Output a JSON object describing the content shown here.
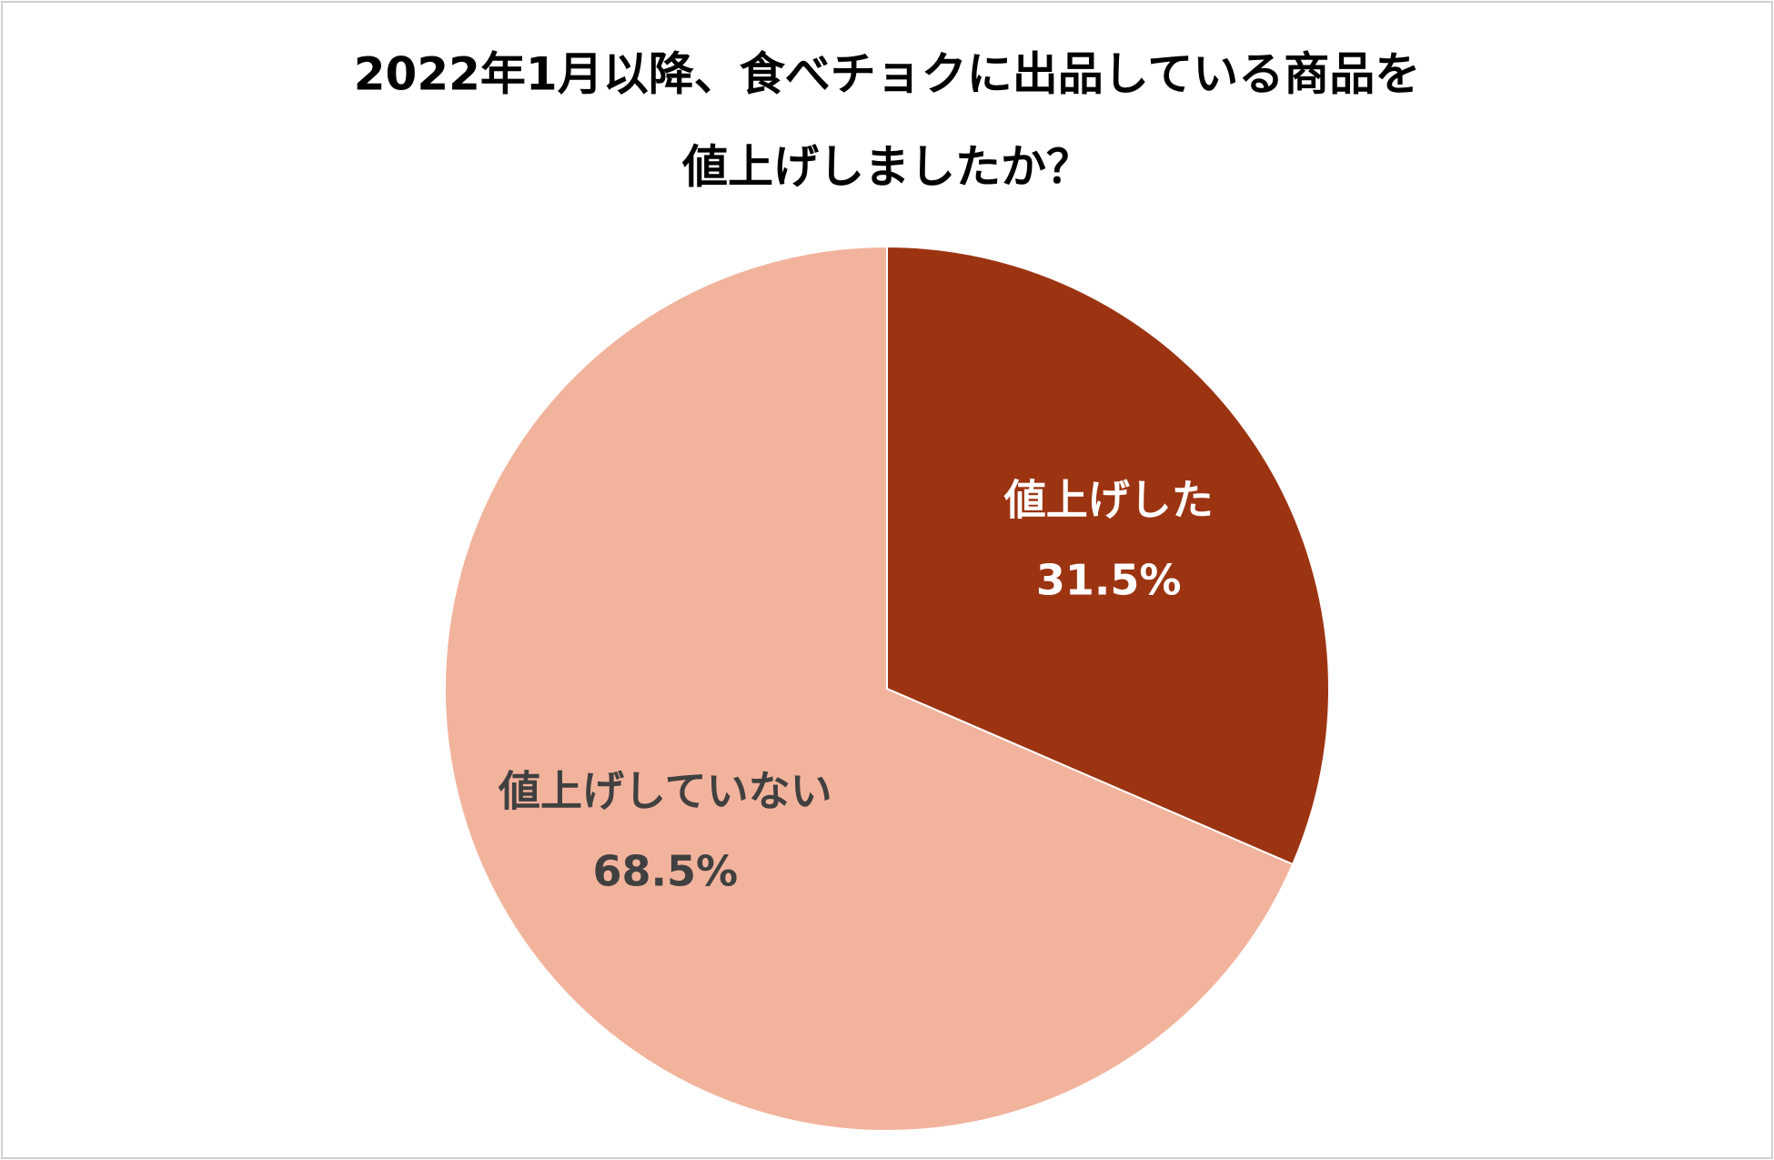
{
  "chart_data": {
    "type": "pie",
    "title": [
      "2022年1月以降、食べチョクに出品している商品を",
      "値上げしましたか？"
    ],
    "categories": [
      "値上げした",
      "値上げしていない"
    ],
    "values": [
      31.5,
      68.5
    ],
    "value_labels": [
      "31.5%",
      "68.5%"
    ],
    "colors": [
      "#9c3412",
      "#f2b39c"
    ],
    "label_colors": [
      "#ffffff",
      "#404040"
    ]
  }
}
